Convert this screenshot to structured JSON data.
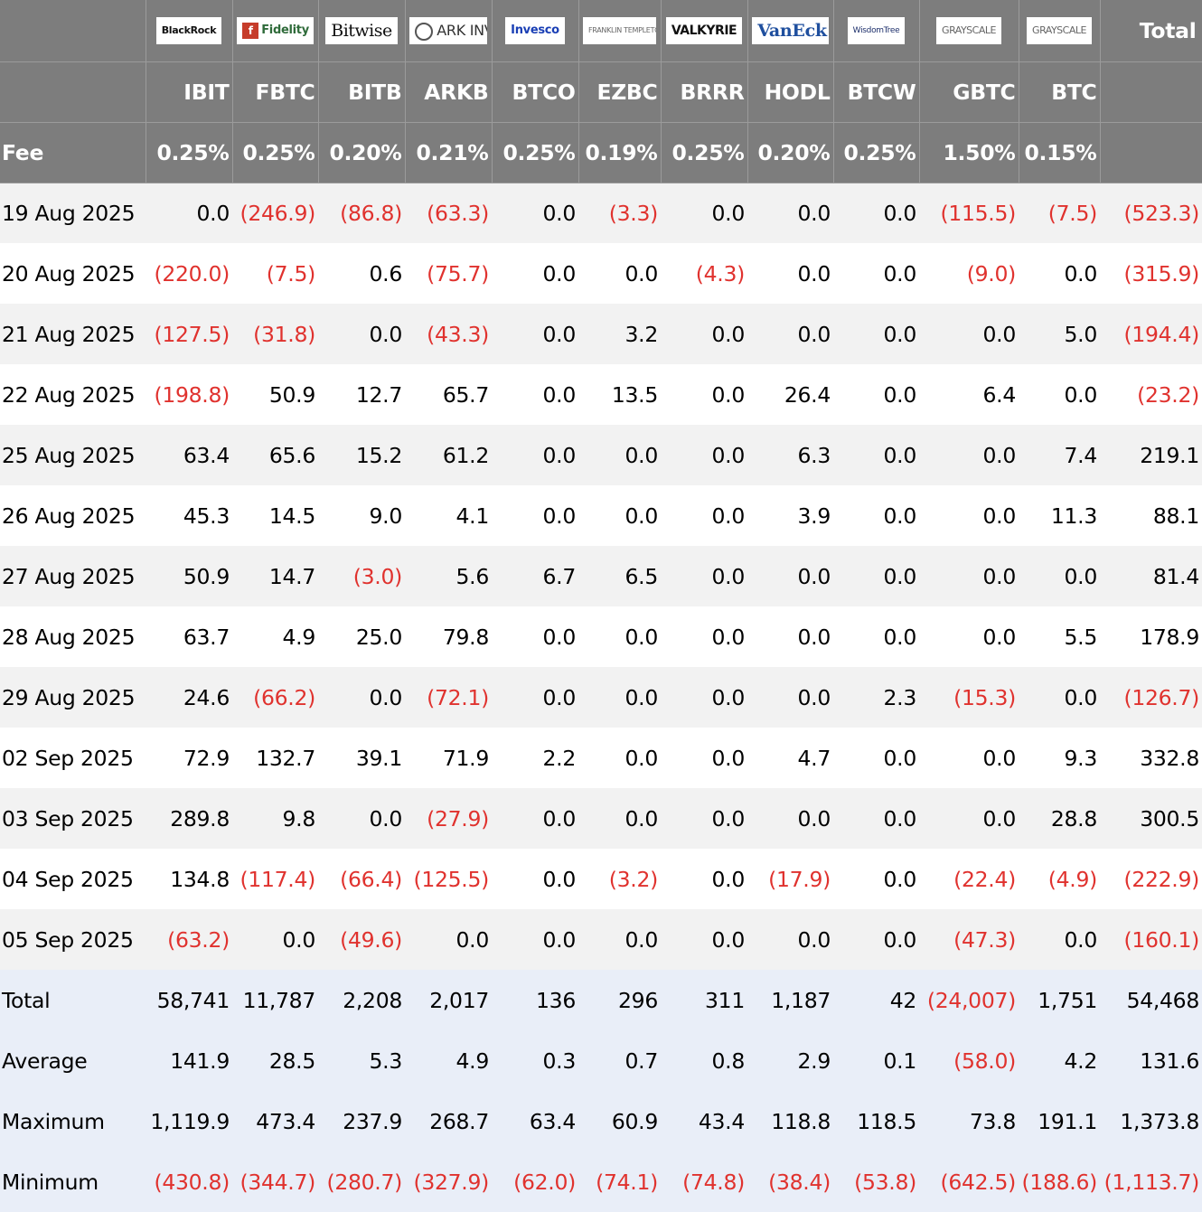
{
  "header": {
    "logos": [
      "BlackRock",
      "Fidelity",
      "Bitwise",
      "ARK INVEST",
      "Invesco",
      "FRANKLIN TEMPLETON",
      "VALKYRIE",
      "VanEck",
      "WisdomTree",
      "GRAYSCALE",
      "GRAYSCALE"
    ],
    "total_label": "Total",
    "tickers": [
      "IBIT",
      "FBTC",
      "BITB",
      "ARKB",
      "BTCO",
      "EZBC",
      "BRRR",
      "HODL",
      "BTCW",
      "GBTC",
      "BTC"
    ],
    "fee_label": "Fee",
    "fees": [
      "0.25%",
      "0.25%",
      "0.20%",
      "0.21%",
      "0.25%",
      "0.19%",
      "0.25%",
      "0.20%",
      "0.25%",
      "1.50%",
      "0.15%"
    ]
  },
  "rows": [
    {
      "date": "19 Aug 2025",
      "values": [
        "0.0",
        "(246.9)",
        "(86.8)",
        "(63.3)",
        "0.0",
        "(3.3)",
        "0.0",
        "0.0",
        "0.0",
        "(115.5)",
        "(7.5)",
        "(523.3)"
      ]
    },
    {
      "date": "20 Aug 2025",
      "values": [
        "(220.0)",
        "(7.5)",
        "0.6",
        "(75.7)",
        "0.0",
        "0.0",
        "(4.3)",
        "0.0",
        "0.0",
        "(9.0)",
        "0.0",
        "(315.9)"
      ]
    },
    {
      "date": "21 Aug 2025",
      "values": [
        "(127.5)",
        "(31.8)",
        "0.0",
        "(43.3)",
        "0.0",
        "3.2",
        "0.0",
        "0.0",
        "0.0",
        "0.0",
        "5.0",
        "(194.4)"
      ]
    },
    {
      "date": "22 Aug 2025",
      "values": [
        "(198.8)",
        "50.9",
        "12.7",
        "65.7",
        "0.0",
        "13.5",
        "0.0",
        "26.4",
        "0.0",
        "6.4",
        "0.0",
        "(23.2)"
      ]
    },
    {
      "date": "25 Aug 2025",
      "values": [
        "63.4",
        "65.6",
        "15.2",
        "61.2",
        "0.0",
        "0.0",
        "0.0",
        "6.3",
        "0.0",
        "0.0",
        "7.4",
        "219.1"
      ]
    },
    {
      "date": "26 Aug 2025",
      "values": [
        "45.3",
        "14.5",
        "9.0",
        "4.1",
        "0.0",
        "0.0",
        "0.0",
        "3.9",
        "0.0",
        "0.0",
        "11.3",
        "88.1"
      ]
    },
    {
      "date": "27 Aug 2025",
      "values": [
        "50.9",
        "14.7",
        "(3.0)",
        "5.6",
        "6.7",
        "6.5",
        "0.0",
        "0.0",
        "0.0",
        "0.0",
        "0.0",
        "81.4"
      ]
    },
    {
      "date": "28 Aug 2025",
      "values": [
        "63.7",
        "4.9",
        "25.0",
        "79.8",
        "0.0",
        "0.0",
        "0.0",
        "0.0",
        "0.0",
        "0.0",
        "5.5",
        "178.9"
      ]
    },
    {
      "date": "29 Aug 2025",
      "values": [
        "24.6",
        "(66.2)",
        "0.0",
        "(72.1)",
        "0.0",
        "0.0",
        "0.0",
        "0.0",
        "2.3",
        "(15.3)",
        "0.0",
        "(126.7)"
      ]
    },
    {
      "date": "02 Sep 2025",
      "values": [
        "72.9",
        "132.7",
        "39.1",
        "71.9",
        "2.2",
        "0.0",
        "0.0",
        "4.7",
        "0.0",
        "0.0",
        "9.3",
        "332.8"
      ]
    },
    {
      "date": "03 Sep 2025",
      "values": [
        "289.8",
        "9.8",
        "0.0",
        "(27.9)",
        "0.0",
        "0.0",
        "0.0",
        "0.0",
        "0.0",
        "0.0",
        "28.8",
        "300.5"
      ]
    },
    {
      "date": "04 Sep 2025",
      "values": [
        "134.8",
        "(117.4)",
        "(66.4)",
        "(125.5)",
        "0.0",
        "(3.2)",
        "0.0",
        "(17.9)",
        "0.0",
        "(22.4)",
        "(4.9)",
        "(222.9)"
      ]
    },
    {
      "date": "05 Sep 2025",
      "values": [
        "(63.2)",
        "0.0",
        "(49.6)",
        "0.0",
        "0.0",
        "0.0",
        "0.0",
        "0.0",
        "0.0",
        "(47.3)",
        "0.0",
        "(160.1)"
      ]
    }
  ],
  "summary": [
    {
      "label": "Total",
      "values": [
        "58,741",
        "11,787",
        "2,208",
        "2,017",
        "136",
        "296",
        "311",
        "1,187",
        "42",
        "(24,007)",
        "1,751",
        "54,468"
      ]
    },
    {
      "label": "Average",
      "values": [
        "141.9",
        "28.5",
        "5.3",
        "4.9",
        "0.3",
        "0.7",
        "0.8",
        "2.9",
        "0.1",
        "(58.0)",
        "4.2",
        "131.6"
      ]
    },
    {
      "label": "Maximum",
      "values": [
        "1,119.9",
        "473.4",
        "237.9",
        "268.7",
        "63.4",
        "60.9",
        "43.4",
        "118.8",
        "118.5",
        "73.8",
        "191.1",
        "1,373.8"
      ]
    },
    {
      "label": "Minimum",
      "values": [
        "(430.8)",
        "(344.7)",
        "(280.7)",
        "(327.9)",
        "(62.0)",
        "(74.1)",
        "(74.8)",
        "(38.4)",
        "(53.8)",
        "(642.5)",
        "(188.6)",
        "(1,113.7)"
      ]
    }
  ],
  "colors": {
    "header_bg": "#7d7d7d",
    "row_odd": "#f2f2f2",
    "row_even": "#ffffff",
    "summary_bg": "#e9eef8",
    "negative": "#e0322e"
  }
}
